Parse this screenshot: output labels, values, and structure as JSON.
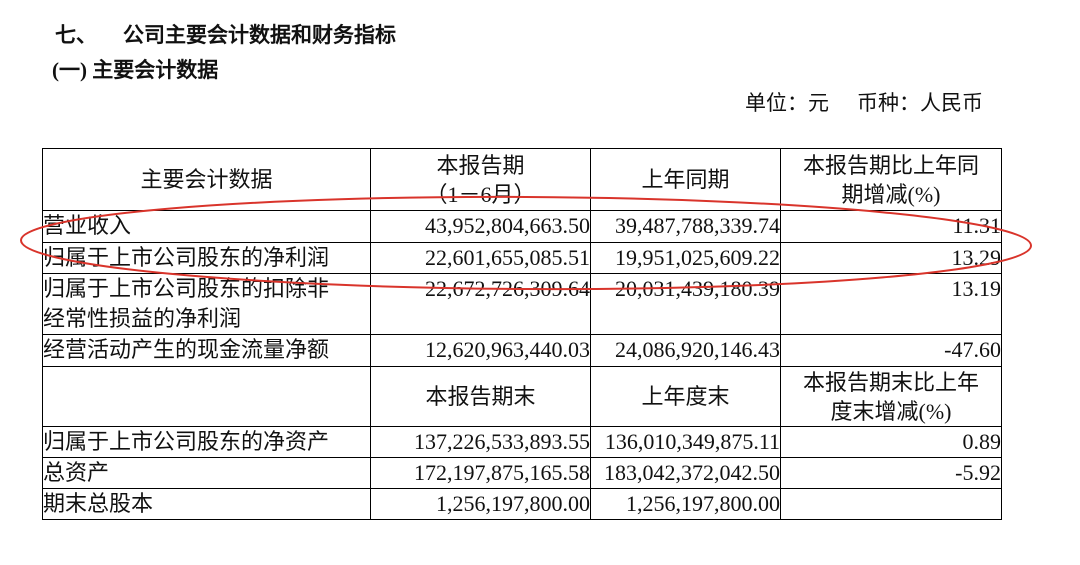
{
  "section": {
    "number": "七、",
    "title": "公司主要会计数据和财务指标"
  },
  "subsection": {
    "title": "(一) 主要会计数据"
  },
  "unit_line": {
    "unit": "单位：元",
    "currency": "币种：人民币"
  },
  "table": {
    "header1": {
      "item": "主要会计数据",
      "current": "本报告期",
      "current_sub": "（1－6月）",
      "prior": "上年同期",
      "change": "本报告期比上年同期增减(%)"
    },
    "rows1": [
      {
        "label": "营业收入",
        "current": "43,952,804,663.50",
        "prior": "39,487,788,339.74",
        "change": "11.31"
      },
      {
        "label": "归属于上市公司股东的净利润",
        "current": "22,601,655,085.51",
        "prior": "19,951,025,609.22",
        "change": "13.29"
      },
      {
        "label": "归属于上市公司股东的扣除非经常性损益的净利润",
        "current": "22,672,726,309.64",
        "prior": "20,031,439,180.39",
        "change": "13.19"
      },
      {
        "label": "经营活动产生的现金流量净额",
        "current": "12,620,963,440.03",
        "prior": "24,086,920,146.43",
        "change": "-47.60"
      }
    ],
    "header2": {
      "current": "本报告期末",
      "prior": "上年度末",
      "change": "本报告期末比上年度末增减(%)"
    },
    "rows2": [
      {
        "label": "归属于上市公司股东的净资产",
        "current": "137,226,533,893.55",
        "prior": "136,010,349,875.11",
        "change": "0.89"
      },
      {
        "label": "总资产",
        "current": "172,197,875,165.58",
        "prior": "183,042,372,042.50",
        "change": "-5.92"
      },
      {
        "label": "期末总股本",
        "current": "1,256,197,800.00",
        "prior": "1,256,197,800.00"
      }
    ]
  },
  "annotation": {
    "ellipse_color": "#d9342b"
  }
}
